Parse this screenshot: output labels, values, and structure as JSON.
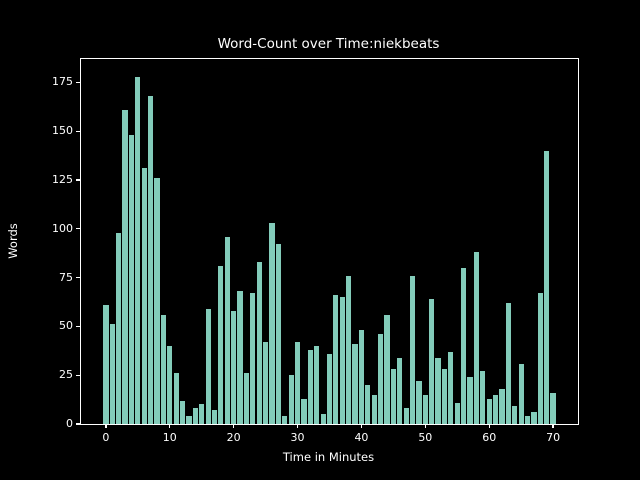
{
  "figure": {
    "background": "#000000",
    "text_color": "#ffffff",
    "spine_color": "#ffffff"
  },
  "chart_data": {
    "type": "bar",
    "title": "Word-Count over Time:niekbeats",
    "xlabel": "Time in Minutes",
    "ylabel": "Words",
    "bar_color": "#83ccba",
    "grid": false,
    "legend_position": "none",
    "xlim": [
      -3.9,
      73.9
    ],
    "ylim": [
      0,
      187
    ],
    "xticks": [
      0,
      10,
      20,
      30,
      40,
      50,
      60,
      70
    ],
    "yticks": [
      0,
      25,
      50,
      75,
      100,
      125,
      150,
      175
    ],
    "x": [
      0,
      1,
      2,
      3,
      4,
      5,
      6,
      7,
      8,
      9,
      10,
      11,
      12,
      13,
      14,
      15,
      16,
      17,
      18,
      19,
      20,
      21,
      22,
      23,
      24,
      25,
      26,
      27,
      28,
      29,
      30,
      31,
      32,
      33,
      34,
      35,
      36,
      37,
      38,
      39,
      40,
      41,
      42,
      43,
      44,
      45,
      46,
      47,
      48,
      49,
      50,
      51,
      52,
      53,
      54,
      55,
      56,
      57,
      58,
      59,
      60,
      61,
      62,
      63,
      64,
      65,
      66,
      67,
      68,
      69,
      70
    ],
    "values": [
      61,
      51,
      98,
      161,
      148,
      178,
      131,
      168,
      126,
      56,
      40,
      26,
      12,
      4,
      8,
      10,
      59,
      7,
      81,
      96,
      58,
      68,
      26,
      67,
      83,
      42,
      103,
      92,
      4,
      25,
      42,
      13,
      38,
      40,
      5,
      36,
      66,
      65,
      76,
      41,
      48,
      20,
      15,
      46,
      56,
      28,
      34,
      8,
      76,
      22,
      15,
      64,
      34,
      28,
      37,
      11,
      80,
      24,
      88,
      27,
      13,
      15,
      18,
      62,
      9,
      31,
      4,
      6,
      67,
      140,
      16
    ]
  }
}
